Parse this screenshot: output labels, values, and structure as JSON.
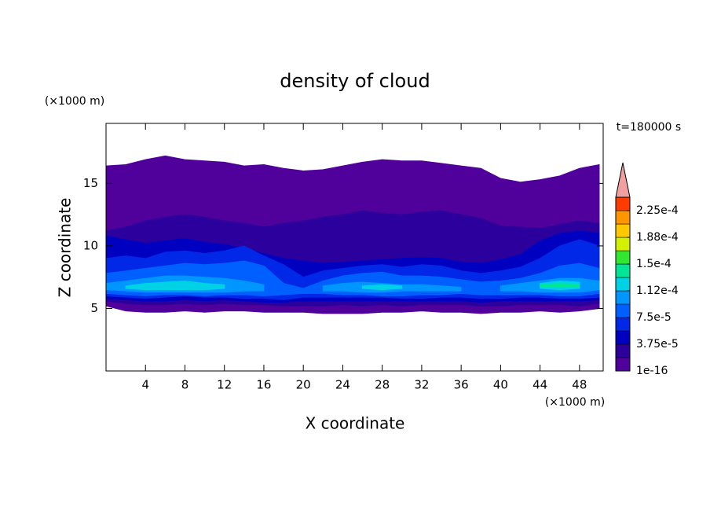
{
  "chart_data": {
    "type": "contour",
    "title": "density of cloud",
    "xlabel": "X coordinate",
    "ylabel": "Z coordinate",
    "xunit": "(×1000 m)",
    "yunit": "(×1000 m)",
    "annotation": "t=180000 s",
    "xlim": [
      0,
      50.4
    ],
    "ylim": [
      0,
      19.8
    ],
    "xticks": [
      4,
      8,
      12,
      16,
      20,
      24,
      28,
      32,
      36,
      40,
      44,
      48
    ],
    "yticks": [
      5,
      10,
      15
    ],
    "colorbar": {
      "levels": [
        1e-16,
        1.875e-05,
        3.75e-05,
        5.625e-05,
        7.5e-05,
        9.375e-05,
        0.0001125,
        0.00013125,
        0.00015,
        0.00016875,
        0.0001875,
        0.00020625,
        0.000225,
        0.00024375
      ],
      "colors": [
        "#50009b",
        "#2c009c",
        "#0000c0",
        "#0028e6",
        "#0060ff",
        "#0096ff",
        "#00d2e6",
        "#00e696",
        "#32e632",
        "#d2f000",
        "#ffc800",
        "#ff9600",
        "#ff3c00"
      ],
      "over_color": "#f0a0a0",
      "ticks": [
        {
          "value": 1e-16,
          "label": "1e-16"
        },
        {
          "value": 3.75e-05,
          "label": "3.75e-5"
        },
        {
          "value": 7.5e-05,
          "label": "7.5e-5"
        },
        {
          "value": 0.0001125,
          "label": "1.12e-4"
        },
        {
          "value": 0.00015,
          "label": "1.5e-4"
        },
        {
          "value": 0.0001875,
          "label": "1.88e-4"
        },
        {
          "value": 0.000225,
          "label": "2.25e-4"
        }
      ]
    },
    "x": [
      0,
      2,
      4,
      6,
      8,
      10,
      12,
      14,
      16,
      18,
      20,
      22,
      24,
      26,
      28,
      30,
      32,
      34,
      36,
      38,
      40,
      42,
      44,
      46,
      48,
      50
    ],
    "layers": [
      {
        "level": 1e-16,
        "top": [
          16.4,
          16.5,
          16.9,
          17.2,
          16.9,
          16.8,
          16.7,
          16.4,
          16.5,
          16.2,
          16.0,
          16.1,
          16.4,
          16.7,
          16.9,
          16.8,
          16.8,
          16.6,
          16.4,
          16.2,
          15.4,
          15.1,
          15.3,
          15.6,
          16.2,
          16.5
        ],
        "bottom": [
          5.2,
          4.8,
          4.7,
          4.7,
          4.8,
          4.7,
          4.8,
          4.8,
          4.7,
          4.7,
          4.7,
          4.6,
          4.6,
          4.6,
          4.7,
          4.7,
          4.8,
          4.7,
          4.7,
          4.6,
          4.7,
          4.7,
          4.8,
          4.7,
          4.8,
          5.0
        ]
      },
      {
        "level": 1.875e-05,
        "top": [
          11.2,
          11.5,
          12.0,
          12.3,
          12.5,
          12.3,
          12.0,
          11.8,
          11.5,
          11.8,
          12.0,
          12.3,
          12.5,
          12.8,
          12.6,
          12.5,
          12.7,
          12.8,
          12.5,
          12.2,
          11.6,
          11.5,
          11.4,
          11.7,
          12.0,
          11.8
        ],
        "bottom": [
          5.6,
          5.4,
          5.3,
          5.3,
          5.4,
          5.3,
          5.4,
          5.3,
          5.3,
          5.2,
          5.2,
          5.2,
          5.3,
          5.2,
          5.3,
          5.2,
          5.3,
          5.3,
          5.3,
          5.2,
          5.2,
          5.3,
          5.3,
          5.3,
          5.2,
          5.4
        ]
      },
      {
        "level": 3.75e-05,
        "top": [
          10.8,
          10.5,
          10.2,
          10.4,
          10.6,
          10.3,
          10.1,
          9.8,
          9.4,
          9.0,
          8.8,
          8.6,
          8.7,
          8.8,
          8.9,
          9.0,
          9.1,
          9.0,
          8.7,
          8.6,
          8.9,
          9.3,
          10.4,
          11.0,
          11.2,
          11.0
        ],
        "bottom": [
          5.8,
          5.7,
          5.6,
          5.6,
          5.7,
          5.6,
          5.7,
          5.6,
          5.5,
          5.5,
          5.6,
          5.6,
          5.6,
          5.6,
          5.6,
          5.6,
          5.6,
          5.6,
          5.6,
          5.5,
          5.6,
          5.6,
          5.6,
          5.6,
          5.6,
          5.7
        ]
      },
      {
        "level": 5.625e-05,
        "top": [
          9.0,
          9.2,
          9.0,
          9.5,
          9.6,
          9.4,
          9.6,
          10.0,
          9.2,
          8.5,
          7.5,
          8.0,
          8.2,
          8.4,
          8.5,
          8.3,
          8.5,
          8.4,
          8.0,
          7.8,
          8.0,
          8.3,
          9.0,
          10.0,
          10.5,
          10.0
        ],
        "bottom": [
          6.0,
          5.9,
          5.8,
          5.9,
          6.0,
          5.9,
          5.9,
          5.8,
          5.8,
          5.7,
          5.9,
          5.9,
          5.9,
          5.9,
          5.9,
          5.8,
          5.8,
          5.9,
          5.9,
          5.8,
          5.8,
          5.9,
          5.9,
          5.8,
          5.8,
          5.9
        ]
      },
      {
        "level": 7.5e-05,
        "top": [
          7.8,
          8.0,
          8.2,
          8.4,
          8.6,
          8.5,
          8.6,
          8.8,
          8.4,
          7.0,
          6.6,
          7.2,
          7.6,
          7.8,
          7.9,
          7.6,
          7.6,
          7.5,
          7.3,
          7.1,
          7.2,
          7.4,
          7.8,
          8.4,
          8.6,
          8.2
        ],
        "bottom": [
          6.2,
          6.1,
          6.0,
          6.1,
          6.1,
          6.0,
          6.1,
          6.1,
          6.0,
          6.1,
          6.2,
          6.2,
          6.1,
          6.1,
          6.0,
          6.0,
          6.1,
          6.1,
          6.2,
          6.1,
          6.1,
          6.1,
          6.1,
          6.0,
          6.0,
          6.2
        ]
      },
      {
        "level": 9.375e-05,
        "top": [
          7.0,
          7.2,
          7.4,
          7.6,
          7.6,
          7.5,
          7.4,
          7.2,
          6.9,
          null,
          null,
          6.8,
          7.0,
          7.1,
          7.0,
          6.9,
          6.9,
          6.8,
          6.7,
          null,
          6.8,
          7.0,
          7.2,
          7.4,
          7.4,
          7.2
        ],
        "bottom": [
          6.5,
          6.4,
          6.3,
          6.3,
          6.3,
          6.3,
          6.3,
          6.4,
          6.4,
          null,
          null,
          6.4,
          6.4,
          6.3,
          6.3,
          6.4,
          6.4,
          6.4,
          6.4,
          null,
          6.4,
          6.4,
          6.3,
          6.3,
          6.3,
          6.5
        ]
      },
      {
        "level": 0.0001125,
        "top": [
          null,
          6.8,
          7.0,
          7.1,
          7.2,
          7.0,
          6.9,
          null,
          null,
          null,
          null,
          null,
          null,
          6.8,
          6.9,
          6.8,
          null,
          null,
          null,
          null,
          null,
          null,
          7.0,
          7.2,
          7.1,
          null
        ],
        "bottom": [
          null,
          6.6,
          6.5,
          6.5,
          6.5,
          6.5,
          6.6,
          null,
          null,
          null,
          null,
          null,
          null,
          6.6,
          6.5,
          6.6,
          null,
          null,
          null,
          null,
          null,
          null,
          6.6,
          6.5,
          6.6,
          null
        ]
      },
      {
        "level": 0.00013125,
        "top": [
          null,
          null,
          null,
          null,
          null,
          null,
          null,
          null,
          null,
          null,
          null,
          null,
          null,
          null,
          null,
          null,
          null,
          null,
          null,
          null,
          null,
          null,
          6.9,
          7.0,
          6.9,
          null
        ],
        "bottom": [
          null,
          null,
          null,
          null,
          null,
          null,
          null,
          null,
          null,
          null,
          null,
          null,
          null,
          null,
          null,
          null,
          null,
          null,
          null,
          null,
          null,
          null,
          6.7,
          6.7,
          6.7,
          null
        ]
      }
    ]
  }
}
